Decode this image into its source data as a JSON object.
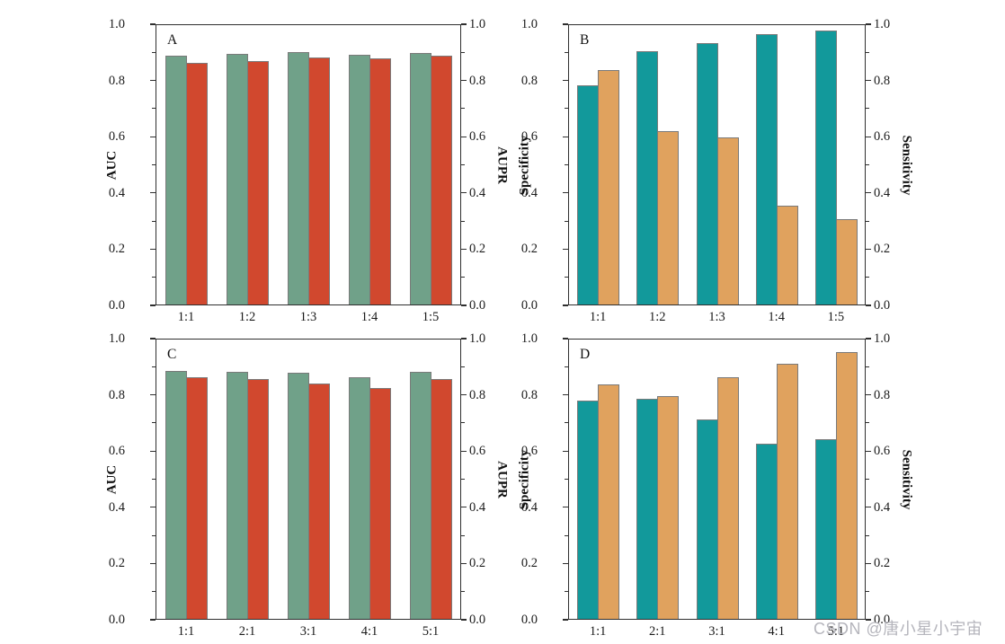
{
  "figure": {
    "watermark": "CSDN @唐小星小宇宙",
    "watermark_color": "#b5b5bc",
    "background": "#ffffff",
    "axis_color": "#2f2f2f",
    "bar_edge_color": "#7a7a7a"
  },
  "chart_data": [
    {
      "panel": "A",
      "type": "bar",
      "categories": [
        "1:1",
        "1:2",
        "1:3",
        "1:4",
        "1:5"
      ],
      "series": [
        {
          "name": "AUC",
          "axis": "left",
          "color": "#70A189",
          "values": [
            0.885,
            0.893,
            0.898,
            0.887,
            0.895
          ]
        },
        {
          "name": "AUPR",
          "axis": "right",
          "color": "#D1482E",
          "values": [
            0.86,
            0.867,
            0.88,
            0.874,
            0.884
          ]
        }
      ],
      "ylabel_left": "AUC",
      "ylabel_right": "AUPR",
      "ylim": [
        0.0,
        1.0
      ],
      "ytick_values": [
        0.0,
        0.2,
        0.4,
        0.6,
        0.8,
        1.0
      ],
      "ytick_labels": [
        "0.0",
        "0.2",
        "0.4",
        "0.6",
        "0.8",
        "1.0"
      ],
      "yminor_values": [
        0.1,
        0.3,
        0.5,
        0.7,
        0.9
      ],
      "grid": false
    },
    {
      "panel": "B",
      "type": "bar",
      "categories": [
        "1:1",
        "1:2",
        "1:3",
        "1:4",
        "1:5"
      ],
      "series": [
        {
          "name": "Specificity",
          "axis": "left",
          "color": "#12999B",
          "values": [
            0.779,
            0.902,
            0.93,
            0.962,
            0.975
          ]
        },
        {
          "name": "Sensitivity",
          "axis": "right",
          "color": "#E0A25E",
          "values": [
            0.835,
            0.617,
            0.593,
            0.352,
            0.305
          ]
        }
      ],
      "ylabel_left": "Specificity",
      "ylabel_right": "Sensitivity",
      "ylim": [
        0.0,
        1.0
      ],
      "ytick_values": [
        0.0,
        0.2,
        0.4,
        0.6,
        0.8,
        1.0
      ],
      "ytick_labels": [
        "0.0",
        "0.2",
        "0.4",
        "0.6",
        "0.8",
        "1.0"
      ],
      "yminor_values": [
        0.1,
        0.3,
        0.5,
        0.7,
        0.9
      ],
      "grid": false
    },
    {
      "panel": "C",
      "type": "bar",
      "categories": [
        "1:1",
        "2:1",
        "3:1",
        "4:1",
        "5:1"
      ],
      "series": [
        {
          "name": "AUC",
          "axis": "left",
          "color": "#70A189",
          "values": [
            0.881,
            0.878,
            0.875,
            0.859,
            0.879
          ]
        },
        {
          "name": "AUPR",
          "axis": "right",
          "color": "#D1482E",
          "values": [
            0.858,
            0.853,
            0.837,
            0.821,
            0.853
          ]
        }
      ],
      "ylabel_left": "AUC",
      "ylabel_right": "AUPR",
      "ylim": [
        0.0,
        1.0
      ],
      "ytick_values": [
        0.0,
        0.2,
        0.4,
        0.6,
        0.8,
        1.0
      ],
      "ytick_labels": [
        "0.0",
        "0.2",
        "0.4",
        "0.6",
        "0.8",
        "1.0"
      ],
      "yminor_values": [
        0.1,
        0.3,
        0.5,
        0.7,
        0.9
      ],
      "grid": false
    },
    {
      "panel": "D",
      "type": "bar",
      "categories": [
        "1:1",
        "2:1",
        "3:1",
        "4:1",
        "5:1"
      ],
      "series": [
        {
          "name": "Specificity",
          "axis": "left",
          "color": "#12999B",
          "values": [
            0.778,
            0.783,
            0.71,
            0.623,
            0.638
          ]
        },
        {
          "name": "Sensitivity",
          "axis": "right",
          "color": "#E0A25E",
          "values": [
            0.834,
            0.791,
            0.858,
            0.906,
            0.95
          ]
        }
      ],
      "ylabel_left": "Specificity",
      "ylabel_right": "Sensitivity",
      "ylim": [
        0.0,
        1.0
      ],
      "ytick_values": [
        0.0,
        0.2,
        0.4,
        0.6,
        0.8,
        1.0
      ],
      "ytick_labels": [
        "0.0",
        "0.2",
        "0.4",
        "0.6",
        "0.8",
        "1.0"
      ],
      "yminor_values": [
        0.1,
        0.3,
        0.5,
        0.7,
        0.9
      ],
      "grid": false
    }
  ]
}
